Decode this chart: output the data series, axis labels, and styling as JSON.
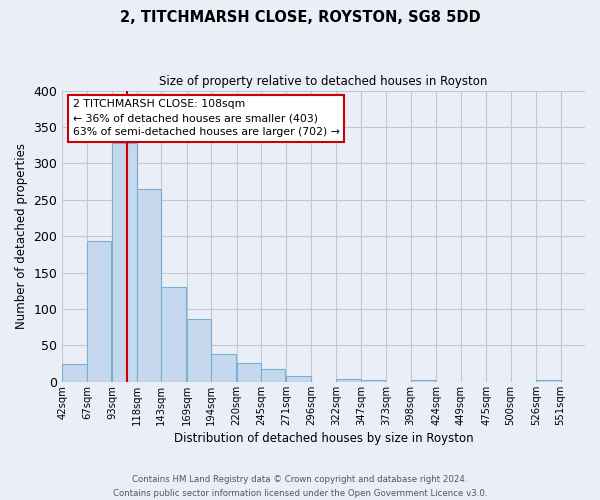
{
  "title": "2, TITCHMARSH CLOSE, ROYSTON, SG8 5DD",
  "subtitle": "Size of property relative to detached houses in Royston",
  "xlabel": "Distribution of detached houses by size in Royston",
  "ylabel": "Number of detached properties",
  "bin_labels": [
    "42sqm",
    "67sqm",
    "93sqm",
    "118sqm",
    "143sqm",
    "169sqm",
    "194sqm",
    "220sqm",
    "245sqm",
    "271sqm",
    "296sqm",
    "322sqm",
    "347sqm",
    "373sqm",
    "398sqm",
    "424sqm",
    "449sqm",
    "475sqm",
    "500sqm",
    "526sqm",
    "551sqm"
  ],
  "bin_edges": [
    42,
    67,
    93,
    118,
    143,
    169,
    194,
    220,
    245,
    271,
    296,
    322,
    347,
    373,
    398,
    424,
    449,
    475,
    500,
    526,
    551
  ],
  "bar_heights": [
    25,
    193,
    328,
    265,
    130,
    87,
    38,
    26,
    18,
    8,
    0,
    4,
    3,
    0,
    2,
    0,
    0,
    0,
    0,
    3
  ],
  "bar_color": "#c5d8ed",
  "bar_edge_color": "#7aafd4",
  "grid_color": "#c0c8d8",
  "bg_color": "#eaeff7",
  "property_size": 108,
  "vline_color": "#cc0000",
  "annotation_line1": "2 TITCHMARSH CLOSE: 108sqm",
  "annotation_line2": "← 36% of detached houses are smaller (403)",
  "annotation_line3": "63% of semi-detached houses are larger (702) →",
  "annotation_box_color": "#ffffff",
  "annotation_box_edge": "#cc0000",
  "ylim": [
    0,
    400
  ],
  "yticks": [
    0,
    50,
    100,
    150,
    200,
    250,
    300,
    350,
    400
  ],
  "footer_line1": "Contains HM Land Registry data © Crown copyright and database right 2024.",
  "footer_line2": "Contains public sector information licensed under the Open Government Licence v3.0."
}
